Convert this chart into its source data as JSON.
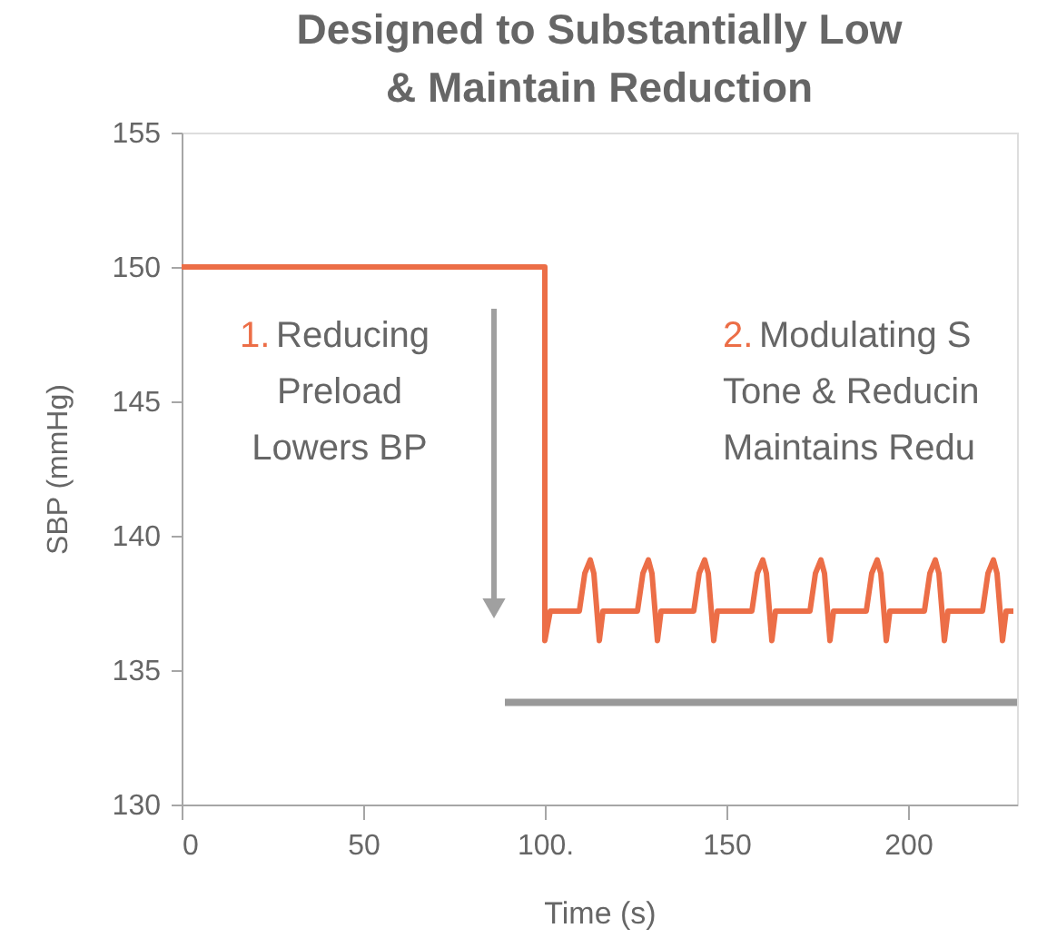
{
  "chart_data": {
    "type": "line",
    "title": "Designed to Substantially Low\n& Maintain Reduction",
    "xlabel": "Time (s)",
    "ylabel": "SBP (mmHg)",
    "xlim": [
      0,
      230
    ],
    "xticks": [
      0,
      50,
      {
        "value": 100,
        "label": "100."
      },
      150,
      200
    ],
    "ylim": [
      130,
      155
    ],
    "yticks": [
      130,
      135,
      140,
      145,
      150,
      155
    ],
    "grid": false,
    "marker": "none",
    "line_style": "solid",
    "annotations": [
      "1. Reducing\nPreload\nLowers BP",
      "2. Modulating S\nTone & Reducin\nMaintains Redu"
    ],
    "series": [
      {
        "color": "#ec6e47",
        "x": [
          0,
          100,
          100,
          101.5,
          109.5,
          111,
          112.5,
          113.5,
          115,
          116,
          125.5,
          127,
          128.5,
          129.5,
          131,
          132,
          141,
          142.5,
          144,
          145,
          146.5,
          147.5,
          157,
          158.5,
          160,
          161,
          162.5,
          163.5,
          173,
          174.5,
          176,
          177,
          178.5,
          179.5,
          188.5,
          190,
          191.5,
          192.5,
          194,
          195,
          204.5,
          206,
          207.5,
          208.5,
          210,
          211,
          220.5,
          222,
          223.5,
          224.5,
          226,
          227,
          229
        ],
        "values": [
          150,
          150,
          136.1,
          137.2,
          137.2,
          138.6,
          139.1,
          138.6,
          136.1,
          137.2,
          137.2,
          138.6,
          139.1,
          138.6,
          136.1,
          137.2,
          137.2,
          138.6,
          139.1,
          138.6,
          136.1,
          137.2,
          137.2,
          138.6,
          139.1,
          138.6,
          136.1,
          137.2,
          137.2,
          138.6,
          139.1,
          138.6,
          136.1,
          137.2,
          137.2,
          138.6,
          139.1,
          138.6,
          136.1,
          137.2,
          137.2,
          138.6,
          139.1,
          138.6,
          136.1,
          137.2,
          137.2,
          138.6,
          139.1,
          138.6,
          136.1,
          137.2,
          137.2
        ]
      },
      {
        "color": "#999999",
        "x": [
          89,
          230
        ],
        "values": [
          133.8,
          133.8
        ]
      }
    ]
  }
}
